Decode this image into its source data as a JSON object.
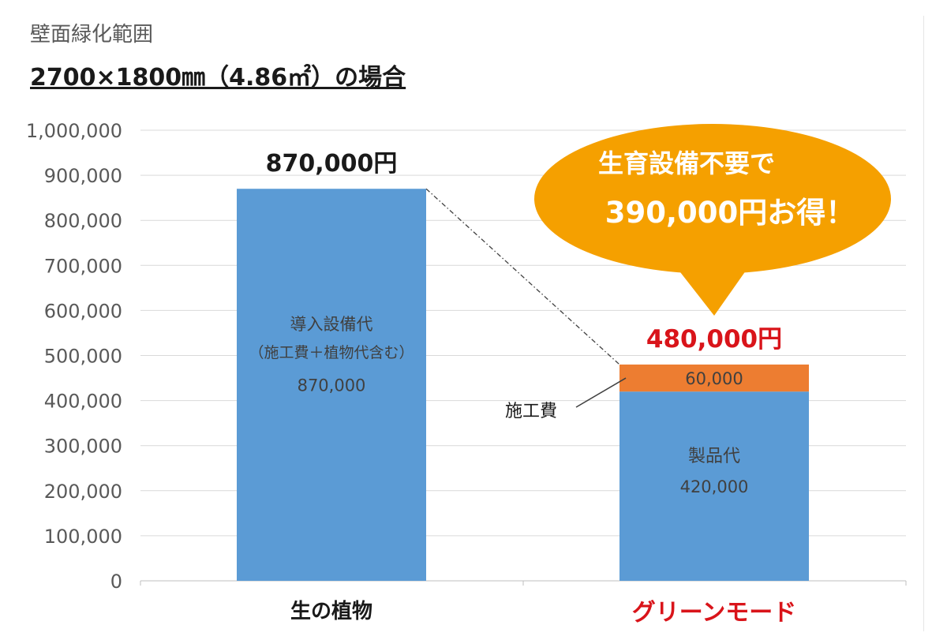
{
  "header": {
    "subtitle": "壁面緑化範囲",
    "title": "2700×1800㎜（4.86㎡）の場合"
  },
  "callout": {
    "line1": "生育設備不要で",
    "line2": "390,000円お得！"
  },
  "colors": {
    "blue": "#5b9bd5",
    "orange": "#ed7d31",
    "callout": "#f5a000",
    "red": "#d9141a",
    "text": "#404040"
  },
  "chart_data": {
    "type": "bar",
    "stacked": true,
    "categories": [
      "生の植物",
      "グリーンモード"
    ],
    "series": [
      {
        "name": "",
        "values": [
          870000,
          420000
        ],
        "color": "#5b9bd5"
      },
      {
        "name": "",
        "values": [
          0,
          60000
        ],
        "color": "#ed7d31"
      }
    ],
    "totals": [
      "870,000円",
      "480,000円"
    ],
    "ylim": [
      0,
      1000000
    ],
    "yticks": [
      "0",
      "100,000",
      "200,000",
      "300,000",
      "400,000",
      "500,000",
      "600,000",
      "700,000",
      "800,000",
      "900,000",
      "1,000,000"
    ],
    "grid": true,
    "legend": "none",
    "annotations": {
      "bar1_label_line1": "導入設備代",
      "bar1_label_line2": "（施工費＋植物代含む）",
      "bar1_value": "870,000",
      "bar2_product_label": "製品代",
      "bar2_product_value": "420,000",
      "bar2_install_value": "60,000",
      "bar2_install_label": "施工費"
    }
  }
}
